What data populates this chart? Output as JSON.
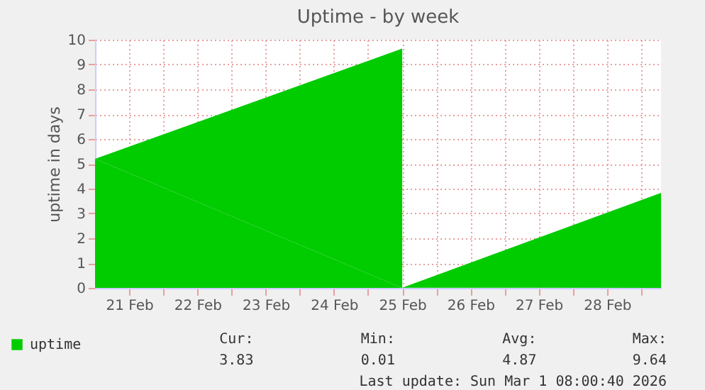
{
  "chart_data": {
    "type": "area",
    "title": "Uptime - by week",
    "ylabel": "uptime in days",
    "x": [
      "2026-02-20T12:00",
      "2026-02-25T00:00",
      "2026-02-25T00:01",
      "2026-02-28T19:00"
    ],
    "series": [
      {
        "name": "uptime",
        "color": "#00cc00",
        "values": [
          5.2,
          9.64,
          0.01,
          3.83
        ]
      }
    ],
    "xlim": [
      "2026-02-20T12:00",
      "2026-02-28T19:00"
    ],
    "xticks": [
      {
        "value": "2026-02-21T00:00",
        "label": "21 Feb"
      },
      {
        "value": "2026-02-21T12:00",
        "label": null
      },
      {
        "value": "2026-02-22T00:00",
        "label": "22 Feb"
      },
      {
        "value": "2026-02-22T12:00",
        "label": null
      },
      {
        "value": "2026-02-23T00:00",
        "label": "23 Feb"
      },
      {
        "value": "2026-02-23T12:00",
        "label": null
      },
      {
        "value": "2026-02-24T00:00",
        "label": "24 Feb"
      },
      {
        "value": "2026-02-24T12:00",
        "label": null
      },
      {
        "value": "2026-02-25T00:00",
        "label": "25 Feb"
      },
      {
        "value": "2026-02-25T12:00",
        "label": null
      },
      {
        "value": "2026-02-26T00:00",
        "label": "26 Feb"
      },
      {
        "value": "2026-02-26T12:00",
        "label": null
      },
      {
        "value": "2026-02-27T00:00",
        "label": "27 Feb"
      },
      {
        "value": "2026-02-27T12:00",
        "label": null
      },
      {
        "value": "2026-02-28T00:00",
        "label": "28 Feb"
      },
      {
        "value": "2026-02-28T12:00",
        "label": null
      }
    ],
    "ylim": [
      0,
      10
    ],
    "yticks": [
      0,
      1,
      2,
      3,
      4,
      5,
      6,
      7,
      8,
      9,
      10
    ],
    "grid": true,
    "legend": "bottom left",
    "annotations": [
      "Cur:",
      "3.83",
      "Min:",
      "0.01",
      "Avg:",
      "4.87",
      "Max:",
      "9.64",
      "Last update: Sun Mar  1 08:00:40 2026"
    ]
  }
}
